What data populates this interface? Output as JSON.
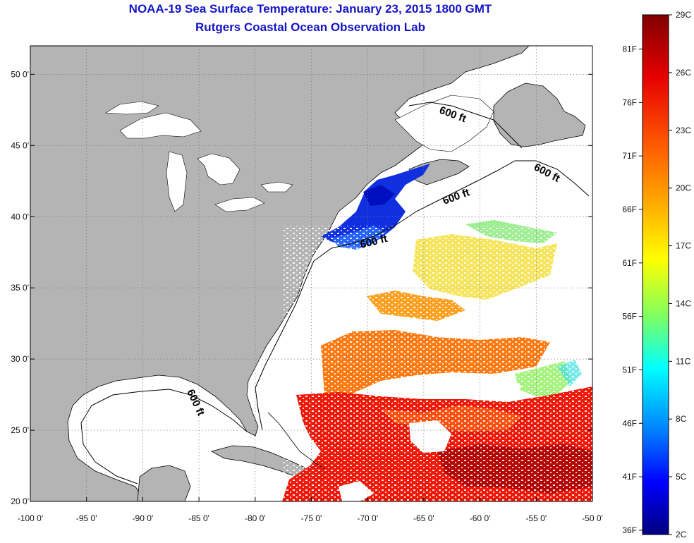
{
  "header": {
    "title": "NOAA-19 Sea Surface Temperature:  January 23, 2015 1800 GMT",
    "subtitle": "Rutgers Coastal Ocean Observation Lab"
  },
  "map": {
    "lon_range": [
      -100,
      -50
    ],
    "lat_range": [
      20,
      52
    ],
    "lon_ticks": [
      "-100 0'",
      "-95 0'",
      "-90 0'",
      "-85 0'",
      "-80 0'",
      "-75 0'",
      "-70 0'",
      "-65 0'",
      "-60 0'",
      "-55 0'",
      "-50 0'"
    ],
    "lat_ticks": [
      "50 0'",
      "45 0'",
      "40 0'",
      "35 0'",
      "30 0'",
      "25 0'",
      "20 0'"
    ],
    "contour_labels": [
      "600 ft",
      "600 ft",
      "600 ft",
      "600 ft",
      "600 ft"
    ],
    "colors": {
      "land": "#b4b4b4",
      "ocean_nodata": "#ffffff",
      "grid": "#777777"
    }
  },
  "colorbar": {
    "celsius": [
      "29C",
      "26C",
      "23C",
      "20C",
      "17C",
      "14C",
      "11C",
      "8C",
      "5C",
      "2C"
    ],
    "fahrenheit": [
      "81F",
      "76F",
      "71F",
      "66F",
      "61F",
      "56F",
      "51F",
      "46F",
      "41F",
      "36F"
    ],
    "gradient": [
      "#7f0000",
      "#ff0000",
      "#ff7f00",
      "#ffff00",
      "#7fff7f",
      "#00ffff",
      "#007fff",
      "#0000ff",
      "#00007f"
    ]
  }
}
